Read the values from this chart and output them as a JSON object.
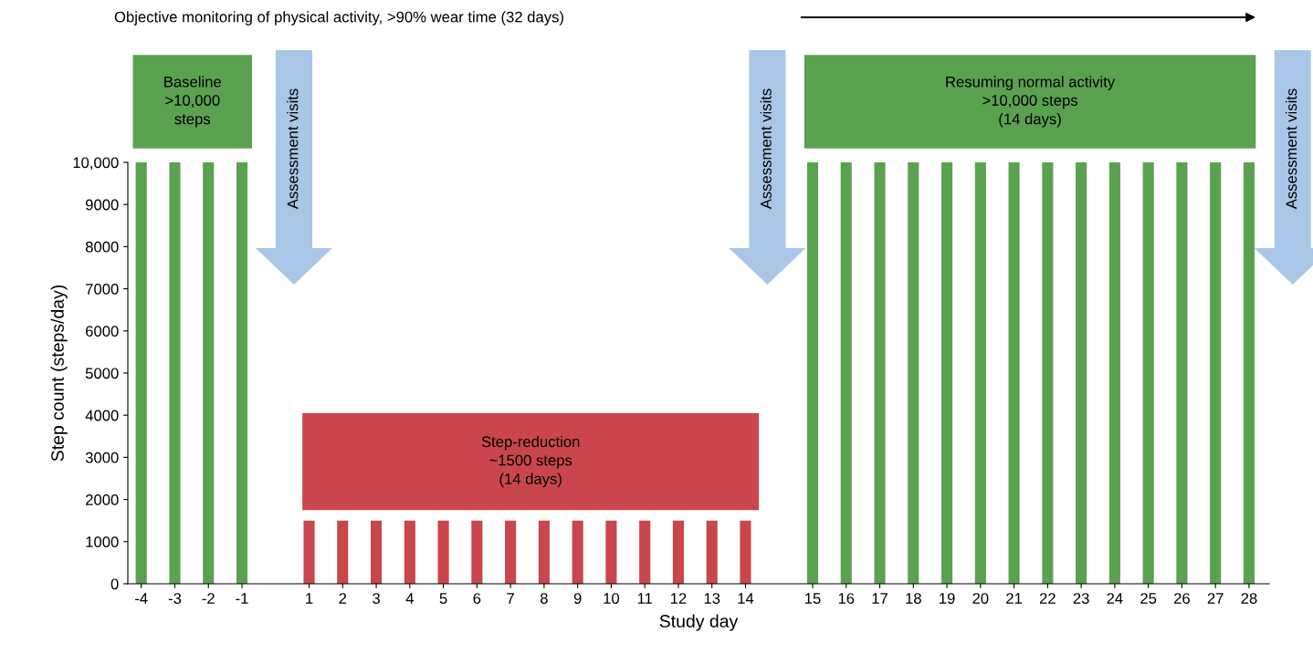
{
  "chart_data": {
    "type": "bar",
    "title": "Objective monitoring of physical activity, >90% wear time (32 days)",
    "xlabel": "Study day",
    "ylabel": "Step count (steps/day)",
    "categories": [
      "-4",
      "-3",
      "-2",
      "-1",
      null,
      "1",
      "2",
      "3",
      "4",
      "5",
      "6",
      "7",
      "8",
      "9",
      "10",
      "11",
      "12",
      "13",
      "14",
      null,
      "15",
      "16",
      "17",
      "18",
      "19",
      "20",
      "21",
      "22",
      "23",
      "24",
      "25",
      "26",
      "27",
      "28"
    ],
    "values": [
      10000,
      10000,
      10000,
      10000,
      null,
      1500,
      1500,
      1500,
      1500,
      1500,
      1500,
      1500,
      1500,
      1500,
      1500,
      1500,
      1500,
      1500,
      1500,
      null,
      10000,
      10000,
      10000,
      10000,
      10000,
      10000,
      10000,
      10000,
      10000,
      10000,
      10000,
      10000,
      10000,
      10000
    ],
    "colors": [
      "#5ba250",
      "#5ba250",
      "#5ba250",
      "#5ba250",
      null,
      "#c9474c",
      "#c9474c",
      "#c9474c",
      "#c9474c",
      "#c9474c",
      "#c9474c",
      "#c9474c",
      "#c9474c",
      "#c9474c",
      "#c9474c",
      "#c9474c",
      "#c9474c",
      "#c9474c",
      "#c9474c",
      null,
      "#5ba250",
      "#5ba250",
      "#5ba250",
      "#5ba250",
      "#5ba250",
      "#5ba250",
      "#5ba250",
      "#5ba250",
      "#5ba250",
      "#5ba250",
      "#5ba250",
      "#5ba250",
      "#5ba250",
      "#5ba250"
    ],
    "ylim": [
      0,
      10000
    ],
    "yticks": [
      0,
      1000,
      2000,
      3000,
      4000,
      5000,
      6000,
      7000,
      8000,
      9000,
      {
        "value": 10000,
        "label": "10,000"
      }
    ],
    "grid": false,
    "annotations": [
      "Baseline\n>10,000\nsteps",
      "Step-reduction\n~1500 steps\n(14 days)",
      "Resuming normal activity\n>10,000 steps\n(14 days)",
      "Assessment visits",
      "Assessment visits",
      "Assessment visits"
    ]
  }
}
